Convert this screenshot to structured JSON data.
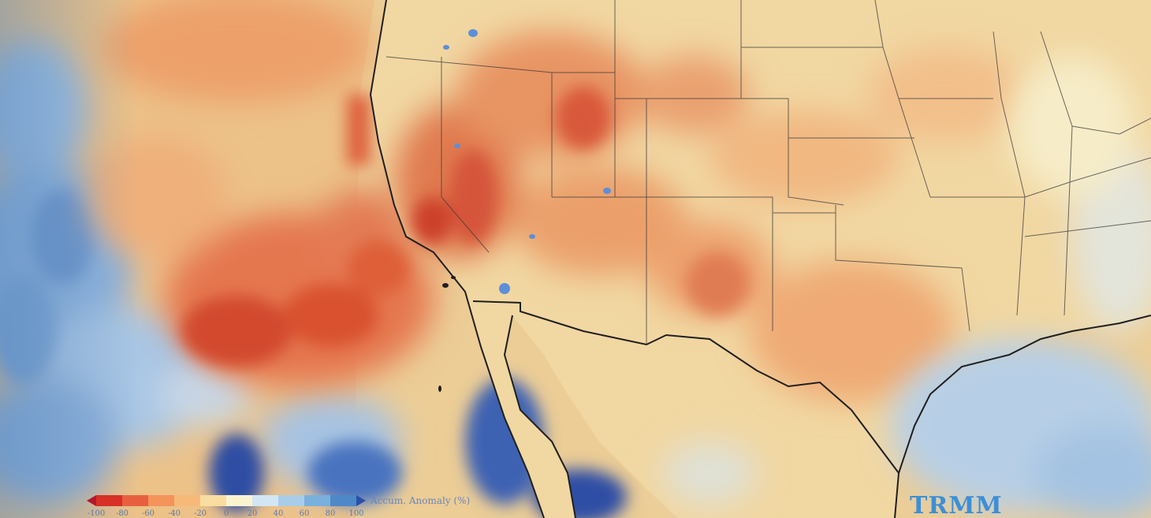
{
  "legend": {
    "title": "Accum. Anomaly (%)",
    "ticks": [
      "-100",
      "-80",
      "-60",
      "-40",
      "-20",
      "0",
      "20",
      "40",
      "60",
      "80",
      "100"
    ],
    "colors": [
      "#b2182b",
      "#d73027",
      "#e8603f",
      "#f4935a",
      "#f7b978",
      "#f9dc9f",
      "#fbf3d0",
      "#d3e6f3",
      "#a9cde8",
      "#7ab0dc",
      "#4f88c8",
      "#2c4ea8"
    ]
  },
  "logo": {
    "text": "TRMM"
  },
  "map": {
    "scale": "precipitation accumulation anomaly",
    "colors": {
      "ocean_neutral": "#e9cf98",
      "land": "#f0d9a8",
      "dry": "#d9542f",
      "wet": "#3d6fc0",
      "border": "#222222"
    }
  }
}
